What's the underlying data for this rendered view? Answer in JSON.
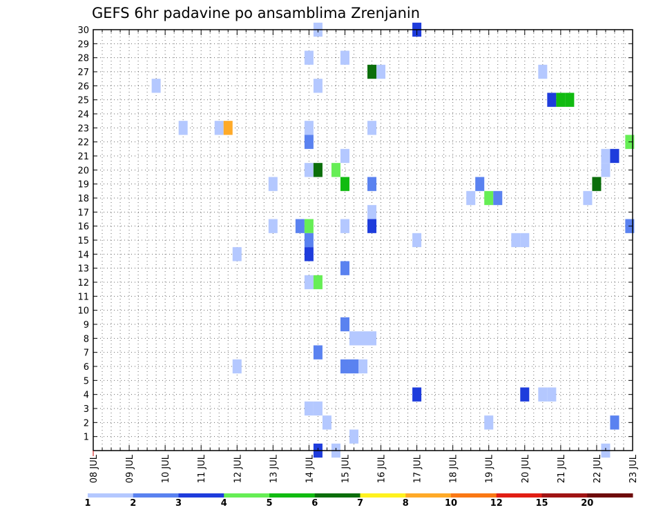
{
  "chart_data": {
    "type": "heatmap",
    "title": "GEFS 6hr padavine po ansamblima Zrenjanin",
    "y_ticks": [
      1,
      2,
      3,
      4,
      5,
      6,
      7,
      8,
      9,
      10,
      11,
      12,
      13,
      14,
      15,
      16,
      17,
      18,
      19,
      20,
      21,
      22,
      23,
      24,
      25,
      26,
      27,
      28,
      29,
      30
    ],
    "ylim": [
      0,
      30
    ],
    "x_ticks": [
      "08 JUL",
      "09 JUL",
      "10 JUL",
      "11 JUL",
      "12 JUL",
      "13 JUL",
      "14 JUL",
      "15 JUL",
      "16 JUL",
      "17 JUL",
      "18 JUL",
      "19 JUL",
      "20 JUL",
      "21 JUL",
      "22 JUL",
      "23 JUL"
    ],
    "x_unit": "day offset from 08 JUL 00z, cell = 6hr",
    "grid": true,
    "legend": {
      "placement": "bottom",
      "colors": [
        "#b4c8ff",
        "#5a82f0",
        "#1e3cdc",
        "#66ee55",
        "#11bb11",
        "#0b6e0b",
        "#fff21e",
        "#ffaa28",
        "#fa7814",
        "#e11e14",
        "#a01414",
        "#6e0a0a"
      ],
      "labels": [
        "1",
        "2",
        "3",
        "4",
        "5",
        "6",
        "7",
        "8",
        "10",
        "12",
        "15",
        "20"
      ]
    },
    "cells": [
      {
        "x": 6.25,
        "y": 30,
        "v": 1
      },
      {
        "x": 9.0,
        "y": 30,
        "v": 3
      },
      {
        "x": 6.0,
        "y": 28,
        "v": 1
      },
      {
        "x": 7.0,
        "y": 28,
        "v": 1
      },
      {
        "x": 7.75,
        "y": 27,
        "v": 6
      },
      {
        "x": 8.0,
        "y": 27,
        "v": 1
      },
      {
        "x": 12.5,
        "y": 27,
        "v": 1
      },
      {
        "x": 1.75,
        "y": 26,
        "v": 1
      },
      {
        "x": 6.25,
        "y": 26,
        "v": 1
      },
      {
        "x": 12.75,
        "y": 25,
        "v": 3
      },
      {
        "x": 13.0,
        "y": 25,
        "v": 5
      },
      {
        "x": 13.25,
        "y": 25,
        "v": 5
      },
      {
        "x": 2.5,
        "y": 23,
        "v": 1
      },
      {
        "x": 3.5,
        "y": 23,
        "v": 1
      },
      {
        "x": 3.75,
        "y": 23,
        "v": 8
      },
      {
        "x": 6.0,
        "y": 23,
        "v": 1
      },
      {
        "x": 7.75,
        "y": 23,
        "v": 1
      },
      {
        "x": 6.0,
        "y": 22,
        "v": 2
      },
      {
        "x": 14.92,
        "y": 22,
        "v": 4
      },
      {
        "x": 7.0,
        "y": 21,
        "v": 1
      },
      {
        "x": 14.25,
        "y": 21,
        "v": 1
      },
      {
        "x": 14.5,
        "y": 21,
        "v": 3
      },
      {
        "x": 6.0,
        "y": 20,
        "v": 1
      },
      {
        "x": 6.25,
        "y": 20,
        "v": 6
      },
      {
        "x": 6.75,
        "y": 20,
        "v": 4
      },
      {
        "x": 14.25,
        "y": 20,
        "v": 1
      },
      {
        "x": 5.0,
        "y": 19,
        "v": 1
      },
      {
        "x": 7.0,
        "y": 19,
        "v": 5
      },
      {
        "x": 7.75,
        "y": 19,
        "v": 2
      },
      {
        "x": 10.75,
        "y": 19,
        "v": 2
      },
      {
        "x": 14.0,
        "y": 19,
        "v": 6
      },
      {
        "x": 10.5,
        "y": 18,
        "v": 1
      },
      {
        "x": 11.0,
        "y": 18,
        "v": 4
      },
      {
        "x": 11.25,
        "y": 18,
        "v": 2
      },
      {
        "x": 13.75,
        "y": 18,
        "v": 1
      },
      {
        "x": 7.75,
        "y": 17,
        "v": 1
      },
      {
        "x": 5.0,
        "y": 16,
        "v": 1
      },
      {
        "x": 5.75,
        "y": 16,
        "v": 2
      },
      {
        "x": 6.0,
        "y": 16,
        "v": 4
      },
      {
        "x": 7.0,
        "y": 16,
        "v": 1
      },
      {
        "x": 7.75,
        "y": 16,
        "v": 3
      },
      {
        "x": 14.92,
        "y": 16,
        "v": 2
      },
      {
        "x": 6.0,
        "y": 15,
        "v": 2
      },
      {
        "x": 9.0,
        "y": 15,
        "v": 1
      },
      {
        "x": 11.75,
        "y": 15,
        "v": 1
      },
      {
        "x": 12.0,
        "y": 15,
        "v": 1
      },
      {
        "x": 4.0,
        "y": 14,
        "v": 1
      },
      {
        "x": 6.0,
        "y": 14,
        "v": 3
      },
      {
        "x": 7.0,
        "y": 13,
        "v": 2
      },
      {
        "x": 6.0,
        "y": 12,
        "v": 1
      },
      {
        "x": 6.25,
        "y": 12,
        "v": 4
      },
      {
        "x": 7.0,
        "y": 9,
        "v": 2
      },
      {
        "x": 7.25,
        "y": 8,
        "v": 1
      },
      {
        "x": 7.5,
        "y": 8,
        "v": 1
      },
      {
        "x": 7.75,
        "y": 8,
        "v": 1
      },
      {
        "x": 6.25,
        "y": 7,
        "v": 2
      },
      {
        "x": 4.0,
        "y": 6,
        "v": 1
      },
      {
        "x": 7.0,
        "y": 6,
        "v": 2
      },
      {
        "x": 7.25,
        "y": 6,
        "v": 2
      },
      {
        "x": 7.5,
        "y": 6,
        "v": 1
      },
      {
        "x": 9.0,
        "y": 4,
        "v": 3
      },
      {
        "x": 12.0,
        "y": 4,
        "v": 3
      },
      {
        "x": 12.5,
        "y": 4,
        "v": 1
      },
      {
        "x": 12.75,
        "y": 4,
        "v": 1
      },
      {
        "x": 6.0,
        "y": 3,
        "v": 1
      },
      {
        "x": 6.25,
        "y": 3,
        "v": 1
      },
      {
        "x": 6.5,
        "y": 2,
        "v": 1
      },
      {
        "x": 11.0,
        "y": 2,
        "v": 1
      },
      {
        "x": 14.5,
        "y": 2,
        "v": 2
      },
      {
        "x": 7.25,
        "y": 1,
        "v": 1
      },
      {
        "x": 6.25,
        "y": 0,
        "v": 3
      },
      {
        "x": 6.75,
        "y": 0,
        "v": 1
      },
      {
        "x": 14.25,
        "y": 0,
        "v": 1
      }
    ]
  }
}
